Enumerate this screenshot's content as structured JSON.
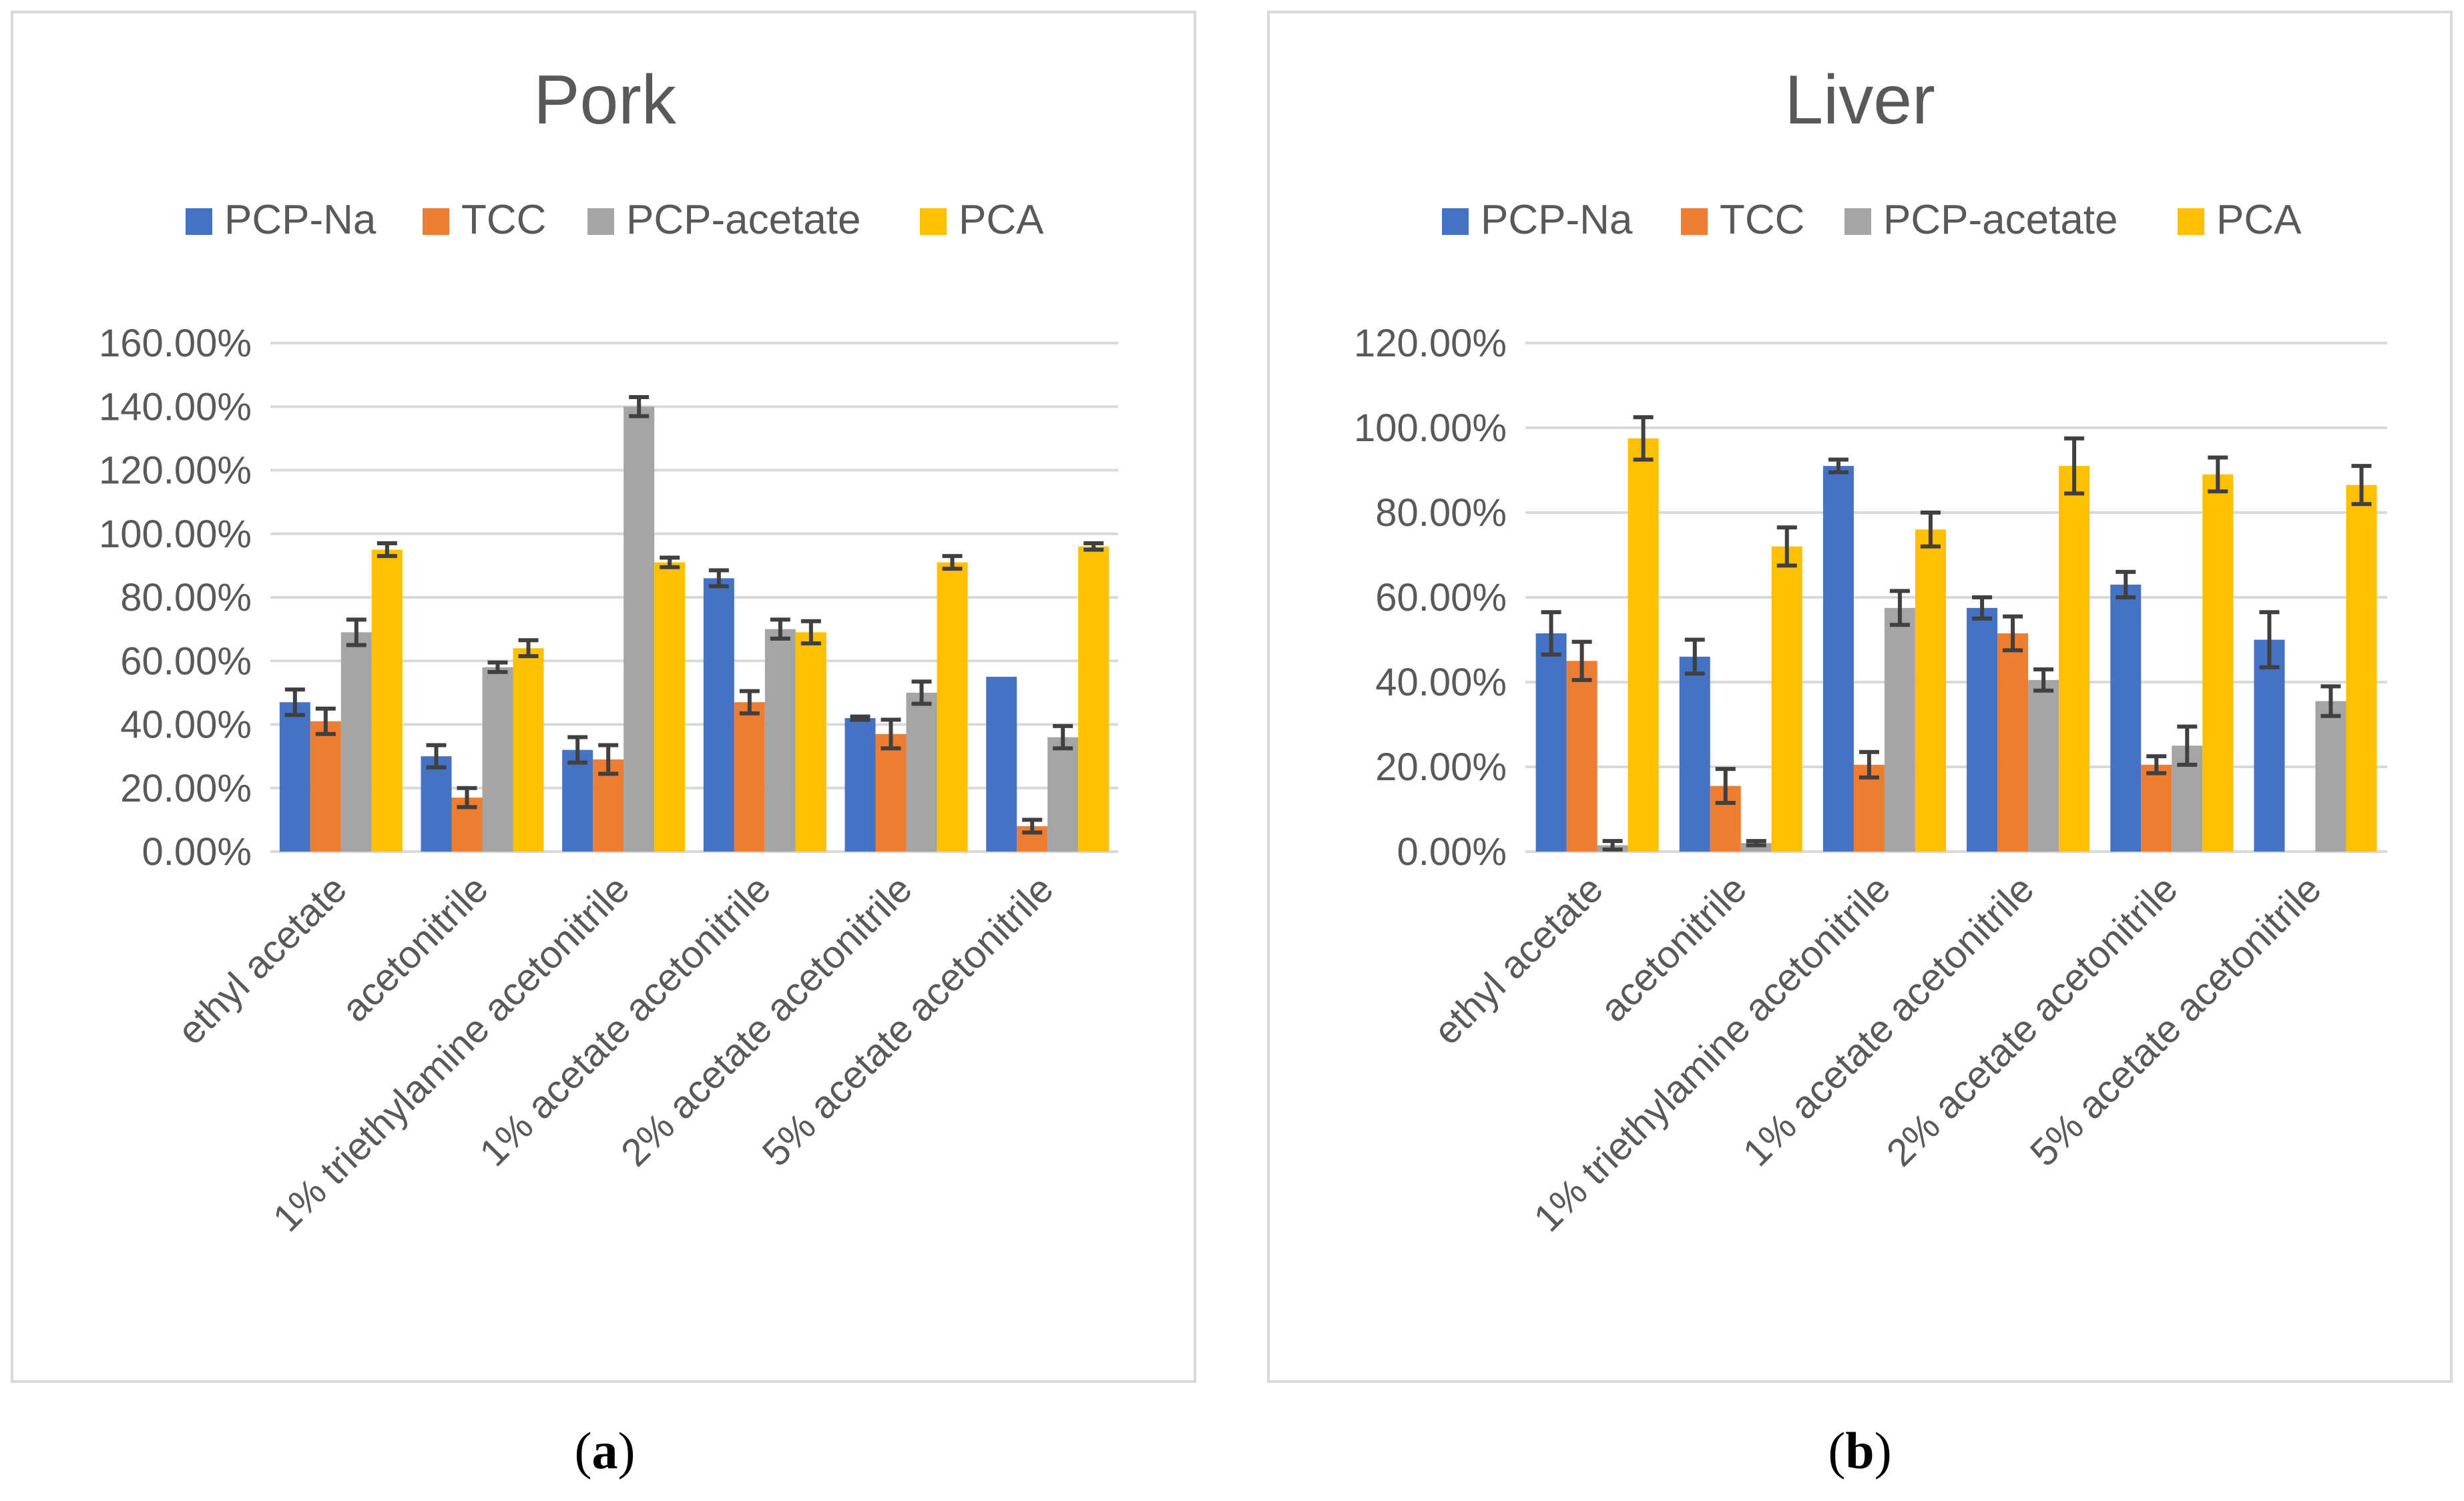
{
  "colors": {
    "series": [
      "#4472C4",
      "#ED7D31",
      "#A5A5A5",
      "#FFC000"
    ],
    "text": "#595959",
    "grid": "#D9D9D9",
    "error_bar": "#404040"
  },
  "chart_data": [
    {
      "type": "bar",
      "title": "Pork",
      "panel_label": "(a)",
      "panel_letter": "a",
      "categories": [
        "ethyl acetate",
        "acetonitrile",
        "1% triethylamine acetonitrile",
        "1% acetate acetonitrile",
        "2% acetate acetonitrile",
        "5% acetate acetonitrile"
      ],
      "series": [
        {
          "name": "PCP-Na",
          "values": [
            47,
            30,
            32,
            86,
            42,
            55
          ],
          "errors": [
            4,
            3.5,
            4,
            2.5,
            0.5,
            0
          ]
        },
        {
          "name": "TCC",
          "values": [
            41,
            17,
            29,
            47,
            37,
            8
          ],
          "errors": [
            4,
            3,
            4.5,
            3.5,
            4.5,
            2
          ]
        },
        {
          "name": "PCP-acetate",
          "values": [
            69,
            58,
            140,
            70,
            50,
            36
          ],
          "errors": [
            4,
            1.5,
            3,
            3,
            3.5,
            3.5
          ]
        },
        {
          "name": "PCA",
          "values": [
            95,
            64,
            91,
            69,
            91,
            96
          ],
          "errors": [
            2,
            2.5,
            1.5,
            3.5,
            2,
            1
          ]
        }
      ],
      "ylim": [
        0,
        160
      ],
      "y_ticks": [
        0,
        20,
        40,
        60,
        80,
        100,
        120,
        140,
        160
      ],
      "y_tick_labels": [
        "0.00%",
        "20.00%",
        "40.00%",
        "60.00%",
        "80.00%",
        "100.00%",
        "120.00%",
        "140.00%",
        "160.00%"
      ],
      "legend": "top",
      "grid": true
    },
    {
      "type": "bar",
      "title": "Liver",
      "panel_label": "(b)",
      "panel_letter": "b",
      "categories": [
        "ethyl acetate",
        "acetonitrile",
        "1% triethylamine acetonitrile",
        "1% acetate acetonitrile",
        "2% acetate acetonitrile",
        "5% acetate acetonitrile"
      ],
      "series": [
        {
          "name": "PCP-Na",
          "values": [
            51.5,
            46,
            91,
            57.5,
            63,
            50
          ],
          "errors": [
            5,
            4,
            1.5,
            2.5,
            3,
            6.5
          ]
        },
        {
          "name": "TCC",
          "values": [
            45,
            15.5,
            20.5,
            51.5,
            20.5,
            null
          ],
          "errors": [
            4.5,
            4,
            3,
            4,
            2,
            null
          ]
        },
        {
          "name": "PCP-acetate",
          "values": [
            1.5,
            2,
            57.5,
            40.5,
            25,
            35.5
          ],
          "errors": [
            1,
            0.5,
            4,
            2.5,
            4.5,
            3.5
          ]
        },
        {
          "name": "PCA",
          "values": [
            97.5,
            72,
            76,
            91,
            89,
            86.5
          ],
          "errors": [
            5,
            4.5,
            4,
            6.5,
            4,
            4.5
          ]
        }
      ],
      "ylim": [
        0,
        120
      ],
      "y_ticks": [
        0,
        20,
        40,
        60,
        80,
        100,
        120
      ],
      "y_tick_labels": [
        "0.00%",
        "20.00%",
        "40.00%",
        "60.00%",
        "80.00%",
        "100.00%",
        "120.00%"
      ],
      "legend": "top",
      "grid": true
    }
  ]
}
